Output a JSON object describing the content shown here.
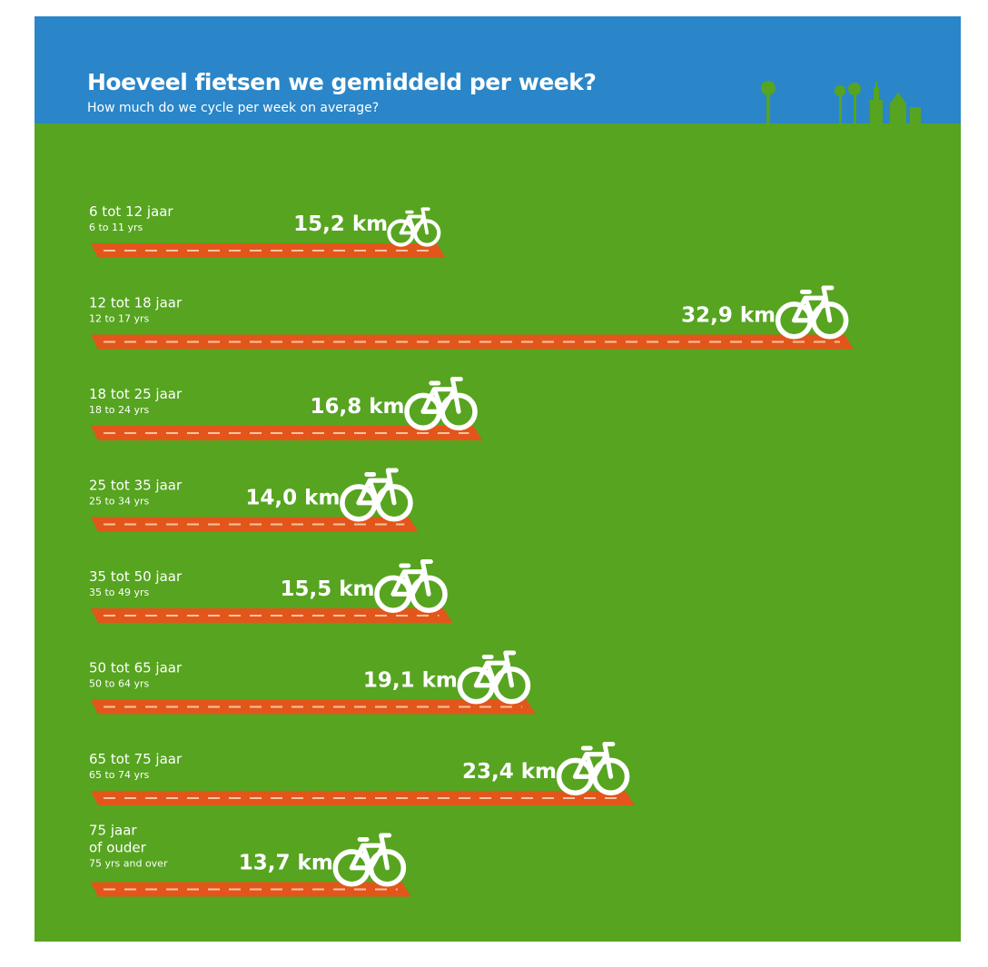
{
  "title": "Hoeveel fietsen we gemiddeld per week?",
  "subtitle": "How much do we cycle per week on average?",
  "colors": {
    "sky": "#2a86c8",
    "grass": "#56a420",
    "road": "#e2561b",
    "dash": "#f7c4a2",
    "text": "#ffffff"
  },
  "icon": "bicycle-icon",
  "chart_data": {
    "type": "bar",
    "orientation": "horizontal",
    "unit": "km",
    "xlim": [
      0,
      32.9
    ],
    "categories": [
      {
        "nl": "6 tot 12 jaar",
        "en": "6 to 11 yrs",
        "value": 15.2,
        "label": "15,2 km"
      },
      {
        "nl": "12 tot 18 jaar",
        "en": "12 to 17 yrs",
        "value": 32.9,
        "label": "32,9 km"
      },
      {
        "nl": "18 tot 25 jaar",
        "en": "18 to 24 yrs",
        "value": 16.8,
        "label": "16,8 km"
      },
      {
        "nl": "25 tot 35 jaar",
        "en": "25 to 34 yrs",
        "value": 14.0,
        "label": "14,0 km"
      },
      {
        "nl": "35 tot 50 jaar",
        "en": "35 to 49 yrs",
        "value": 15.5,
        "label": "15,5 km"
      },
      {
        "nl": "50 tot 65 jaar",
        "en": "50 to 64 yrs",
        "value": 19.1,
        "label": "19,1 km"
      },
      {
        "nl": "65 tot 75 jaar",
        "en": "65 to 74 yrs",
        "value": 23.4,
        "label": "23,4 km"
      },
      {
        "nl": "75 jaar of ouder",
        "en": "75 yrs and over",
        "value": 13.7,
        "label": "13,7 km"
      }
    ]
  }
}
